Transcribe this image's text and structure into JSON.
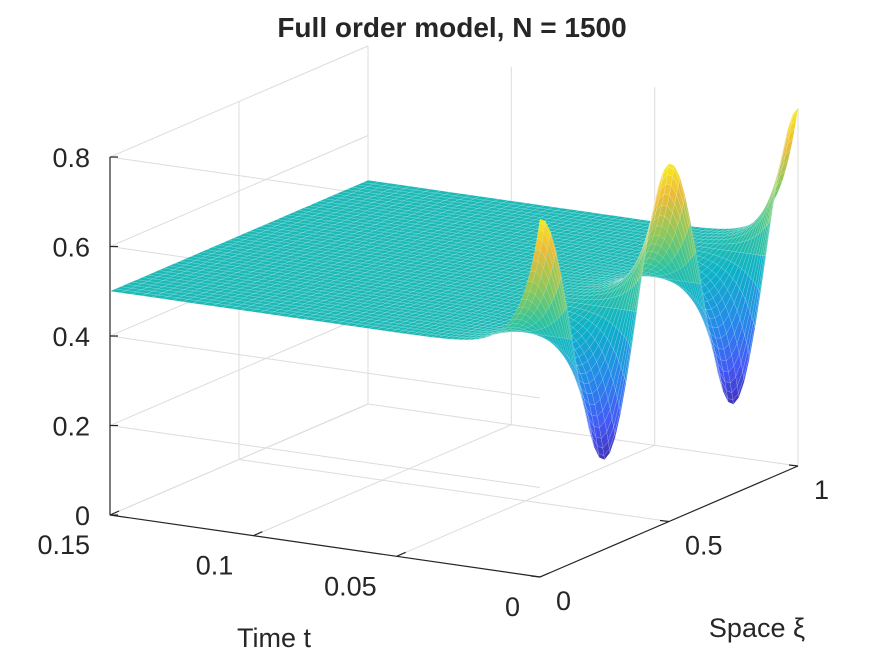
{
  "chart_data": {
    "type": "surface",
    "title": "Full order model, N = 1500",
    "xlabel": "Time t",
    "ylabel": "Space ξ",
    "zlabel": "",
    "xlim": [
      0,
      0.15
    ],
    "ylim": [
      0,
      1
    ],
    "zlim": [
      0,
      0.8
    ],
    "x_ticks": [
      "0",
      "0.05",
      "0.1",
      "0.15"
    ],
    "x_tick_values": [
      0,
      0.05,
      0.1,
      0.15
    ],
    "y_ticks": [
      "0",
      "0.5",
      "1"
    ],
    "y_tick_values": [
      0,
      0.5,
      1
    ],
    "z_ticks": [
      "0",
      "0.2",
      "0.4",
      "0.6",
      "0.8"
    ],
    "z_tick_values": [
      0,
      0.2,
      0.4,
      0.6,
      0.8
    ],
    "grid": true,
    "colormap": "parula",
    "surface": {
      "description_of_values": "u(t, ξ): at t = 0 the profile is 0.5 + 0.3·cos(4πξ); it decays toward the uniform value 0.5 for t > ~0.03",
      "initial_profile_xi": [
        0,
        0.125,
        0.25,
        0.375,
        0.5,
        0.625,
        0.75,
        0.875,
        1
      ],
      "initial_profile_u": [
        0.8,
        0.5,
        0.2,
        0.5,
        0.8,
        0.5,
        0.2,
        0.5,
        0.8
      ],
      "steady_value": 0.5,
      "decay_rate": 150
    }
  }
}
